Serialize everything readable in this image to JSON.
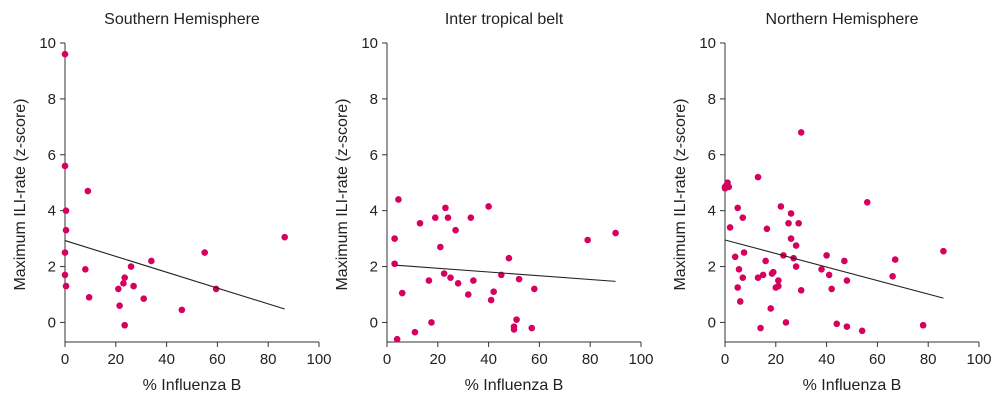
{
  "chart_data": [
    {
      "type": "scatter",
      "title": "Southern Hemisphere",
      "xlabel": "% Influenza B",
      "ylabel": "Maximum ILI-rate (z-score)",
      "xlim": [
        0,
        100
      ],
      "ylim": [
        -0.7,
        10
      ],
      "xticks": [
        "0",
        "20",
        "40",
        "60",
        "80",
        "100"
      ],
      "yticks": [
        "0",
        "2",
        "4",
        "6",
        "8",
        "10"
      ],
      "grid": false,
      "point_color": "#d6005e",
      "line_color": "#222222",
      "points": [
        [
          0,
          9.6
        ],
        [
          0,
          5.6
        ],
        [
          0.4,
          4.0
        ],
        [
          0.4,
          3.3
        ],
        [
          0,
          2.5
        ],
        [
          0,
          1.7
        ],
        [
          0.4,
          1.3
        ],
        [
          8,
          1.9
        ],
        [
          9,
          4.7
        ],
        [
          9.5,
          0.9
        ],
        [
          21,
          1.2
        ],
        [
          21.5,
          0.6
        ],
        [
          23,
          1.4
        ],
        [
          23.5,
          1.6
        ],
        [
          23.5,
          -0.1
        ],
        [
          26,
          2.0
        ],
        [
          27,
          1.3
        ],
        [
          31,
          0.85
        ],
        [
          34,
          2.2
        ],
        [
          46,
          0.45
        ],
        [
          55,
          2.5
        ],
        [
          59.5,
          1.2
        ],
        [
          86.5,
          3.05
        ]
      ],
      "trend": {
        "x": [
          0,
          86.5
        ],
        "y": [
          2.93,
          0.48
        ]
      }
    },
    {
      "type": "scatter",
      "title": "Inter tropical belt",
      "xlabel": "% Influenza B",
      "ylabel": "Maximum ILI-rate (z-score)",
      "xlim": [
        0,
        100
      ],
      "ylim": [
        -0.7,
        10
      ],
      "xticks": [
        "0",
        "20",
        "40",
        "60",
        "80",
        "100"
      ],
      "yticks": [
        "0",
        "2",
        "4",
        "6",
        "8",
        "10"
      ],
      "grid": false,
      "point_color": "#d6005e",
      "line_color": "#222222",
      "points": [
        [
          3,
          3.0
        ],
        [
          3,
          2.1
        ],
        [
          4,
          -0.6
        ],
        [
          4.5,
          4.4
        ],
        [
          6,
          1.05
        ],
        [
          11,
          -0.35
        ],
        [
          13,
          3.55
        ],
        [
          16.5,
          1.5
        ],
        [
          17.5,
          0.0
        ],
        [
          19,
          3.75
        ],
        [
          21,
          2.7
        ],
        [
          22.5,
          1.75
        ],
        [
          23,
          4.1
        ],
        [
          24,
          3.75
        ],
        [
          25,
          1.6
        ],
        [
          27,
          3.3
        ],
        [
          28,
          1.4
        ],
        [
          32,
          1.0
        ],
        [
          33,
          3.75
        ],
        [
          34,
          1.5
        ],
        [
          40,
          4.15
        ],
        [
          41,
          0.8
        ],
        [
          42,
          1.1
        ],
        [
          45,
          1.7
        ],
        [
          48,
          2.3
        ],
        [
          50,
          -0.15
        ],
        [
          50,
          -0.25
        ],
        [
          51,
          0.1
        ],
        [
          52,
          1.55
        ],
        [
          57,
          -0.2
        ],
        [
          58,
          1.2
        ],
        [
          79,
          2.95
        ],
        [
          90,
          3.2
        ]
      ],
      "trend": {
        "x": [
          3.5,
          90
        ],
        "y": [
          2.05,
          1.47
        ]
      }
    },
    {
      "type": "scatter",
      "title": "Northern Hemisphere",
      "xlabel": "% Influenza B",
      "ylabel": "Maximum ILI-rate (z-score)",
      "xlim": [
        0,
        100
      ],
      "ylim": [
        -0.7,
        10
      ],
      "xticks": [
        "0",
        "20",
        "40",
        "60",
        "80",
        "100"
      ],
      "yticks": [
        "0",
        "2",
        "4",
        "6",
        "8",
        "10"
      ],
      "grid": false,
      "point_color": "#d6005e",
      "line_color": "#222222",
      "points": [
        [
          0,
          4.8
        ],
        [
          0,
          4.85
        ],
        [
          0.5,
          4.9
        ],
        [
          1,
          5.0
        ],
        [
          1.5,
          4.85
        ],
        [
          2,
          3.4
        ],
        [
          4,
          2.35
        ],
        [
          5,
          1.25
        ],
        [
          5,
          4.1
        ],
        [
          5.5,
          1.9
        ],
        [
          6,
          0.75
        ],
        [
          7,
          3.75
        ],
        [
          7,
          1.6
        ],
        [
          7.5,
          2.5
        ],
        [
          13,
          5.2
        ],
        [
          13,
          1.6
        ],
        [
          14,
          -0.2
        ],
        [
          15,
          1.7
        ],
        [
          16,
          2.2
        ],
        [
          16.5,
          3.35
        ],
        [
          18,
          0.5
        ],
        [
          18.5,
          1.75
        ],
        [
          19,
          1.8
        ],
        [
          20,
          1.25
        ],
        [
          21,
          1.5
        ],
        [
          21,
          1.3
        ],
        [
          22,
          4.15
        ],
        [
          23,
          2.4
        ],
        [
          24,
          0.0
        ],
        [
          25,
          3.55
        ],
        [
          26,
          3.9
        ],
        [
          26,
          3.0
        ],
        [
          27,
          2.3
        ],
        [
          28,
          2.0
        ],
        [
          28,
          2.75
        ],
        [
          29,
          3.55
        ],
        [
          30,
          6.8
        ],
        [
          30,
          1.15
        ],
        [
          38,
          1.9
        ],
        [
          40,
          2.4
        ],
        [
          41,
          1.7
        ],
        [
          42,
          1.2
        ],
        [
          44,
          -0.05
        ],
        [
          47,
          2.2
        ],
        [
          48,
          1.5
        ],
        [
          48,
          -0.15
        ],
        [
          54,
          -0.3
        ],
        [
          56,
          4.3
        ],
        [
          66,
          1.65
        ],
        [
          67,
          2.25
        ],
        [
          78,
          -0.1
        ],
        [
          86,
          2.55
        ]
      ],
      "trend": {
        "x": [
          0,
          86
        ],
        "y": [
          2.95,
          0.87
        ]
      }
    }
  ]
}
